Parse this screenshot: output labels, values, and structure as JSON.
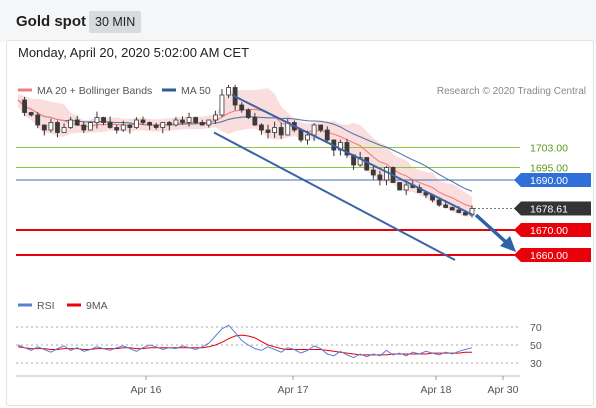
{
  "header": {
    "title": "Gold spot",
    "timeframe": "30 MIN"
  },
  "date_line": "Monday, April 20, 2020 5:02:00 AM CET",
  "legend": {
    "ma_boll": "MA 20 + Bollinger Bands",
    "ma50": "MA 50",
    "credit": "Research © 2020 Trading Central"
  },
  "rsi_legend": {
    "rsi": "RSI",
    "ma9": "9MA"
  },
  "colors": {
    "candle": "#3a3a3a",
    "boll_fill": "#f8d3d3",
    "ma20": "#f08080",
    "ma50": "#2b5c9a",
    "green_level": "#8cc63f",
    "blue_level": "#3c6fb6",
    "red_level": "#e8000b",
    "channel": "#3b63a6",
    "rsi": "#5b7fd6",
    "rsi_ma": "#e8000b",
    "current": "#333333"
  },
  "chart_data": {
    "type": "candlestick",
    "ylim": [
      1650,
      1720
    ],
    "x_ticks": [
      "Apr 16",
      "Apr 17",
      "Apr 18",
      "Apr 30"
    ],
    "levels": [
      {
        "value": 1703.0,
        "label": "1703.00",
        "style": "green"
      },
      {
        "value": 1695.0,
        "label": "1695.00",
        "style": "green"
      },
      {
        "value": 1690.0,
        "label": "1690.00",
        "style": "blue"
      },
      {
        "value": 1670.0,
        "label": "1670.00",
        "style": "red"
      },
      {
        "value": 1660.0,
        "label": "1660.00",
        "style": "red"
      }
    ],
    "current_price": {
      "value": 1678.61,
      "label": "1678.61"
    },
    "price_path": [
      1722,
      1717,
      1716,
      1712,
      1710,
      1713,
      1709,
      1711,
      1714,
      1712,
      1710,
      1713,
      1715,
      1713,
      1711,
      1710,
      1712,
      1711,
      1714,
      1713,
      1712,
      1711,
      1713,
      1712,
      1714,
      1713,
      1715,
      1713,
      1712,
      1714,
      1716,
      1724,
      1727,
      1720,
      1718,
      1715,
      1712,
      1710,
      1709,
      1711,
      1708,
      1713,
      1710,
      1706,
      1708,
      1712,
      1710,
      1706,
      1702,
      1705,
      1700,
      1696,
      1699,
      1694,
      1692,
      1690,
      1695,
      1689,
      1686,
      1688,
      1687,
      1685,
      1684,
      1682,
      1680,
      1679,
      1678,
      1677,
      1676,
      1678.61
    ],
    "channel_upper": [
      [
        1724,
        1678
      ],
      [
        1676,
        1678
      ]
    ],
    "channel_lower": [
      [
        1709,
        1658
      ],
      [
        1677,
        1658
      ]
    ],
    "forecast_arrow": {
      "from": 1676,
      "to": 1662
    },
    "rsi": {
      "levels": [
        70,
        50,
        30
      ],
      "labels": [
        "70",
        "50",
        "30"
      ],
      "values": [
        50,
        47,
        44,
        48,
        45,
        42,
        46,
        49,
        44,
        47,
        43,
        45,
        48,
        46,
        44,
        47,
        49,
        46,
        43,
        47,
        50,
        48,
        45,
        47,
        46,
        49,
        47,
        45,
        48,
        52,
        60,
        68,
        72,
        64,
        55,
        50,
        46,
        44,
        48,
        45,
        42,
        47,
        45,
        41,
        44,
        49,
        46,
        40,
        38,
        43,
        39,
        36,
        40,
        37,
        40,
        38,
        44,
        39,
        41,
        38,
        42,
        40,
        43,
        41,
        39,
        42,
        40,
        43,
        45,
        47
      ],
      "ma_values": [
        48,
        47,
        46,
        46,
        46,
        45,
        45,
        46,
        46,
        46,
        45,
        45,
        46,
        46,
        46,
        46,
        47,
        47,
        46,
        46,
        47,
        47,
        47,
        47,
        47,
        47,
        47,
        47,
        47,
        48,
        50,
        53,
        57,
        60,
        61,
        60,
        58,
        54,
        50,
        48,
        46,
        45,
        45,
        45,
        45,
        45,
        45,
        44,
        43,
        42,
        41,
        40,
        39,
        39,
        39,
        39,
        39,
        40,
        40,
        40,
        40,
        40,
        40,
        41,
        41,
        41,
        41,
        41,
        42,
        42
      ]
    }
  }
}
